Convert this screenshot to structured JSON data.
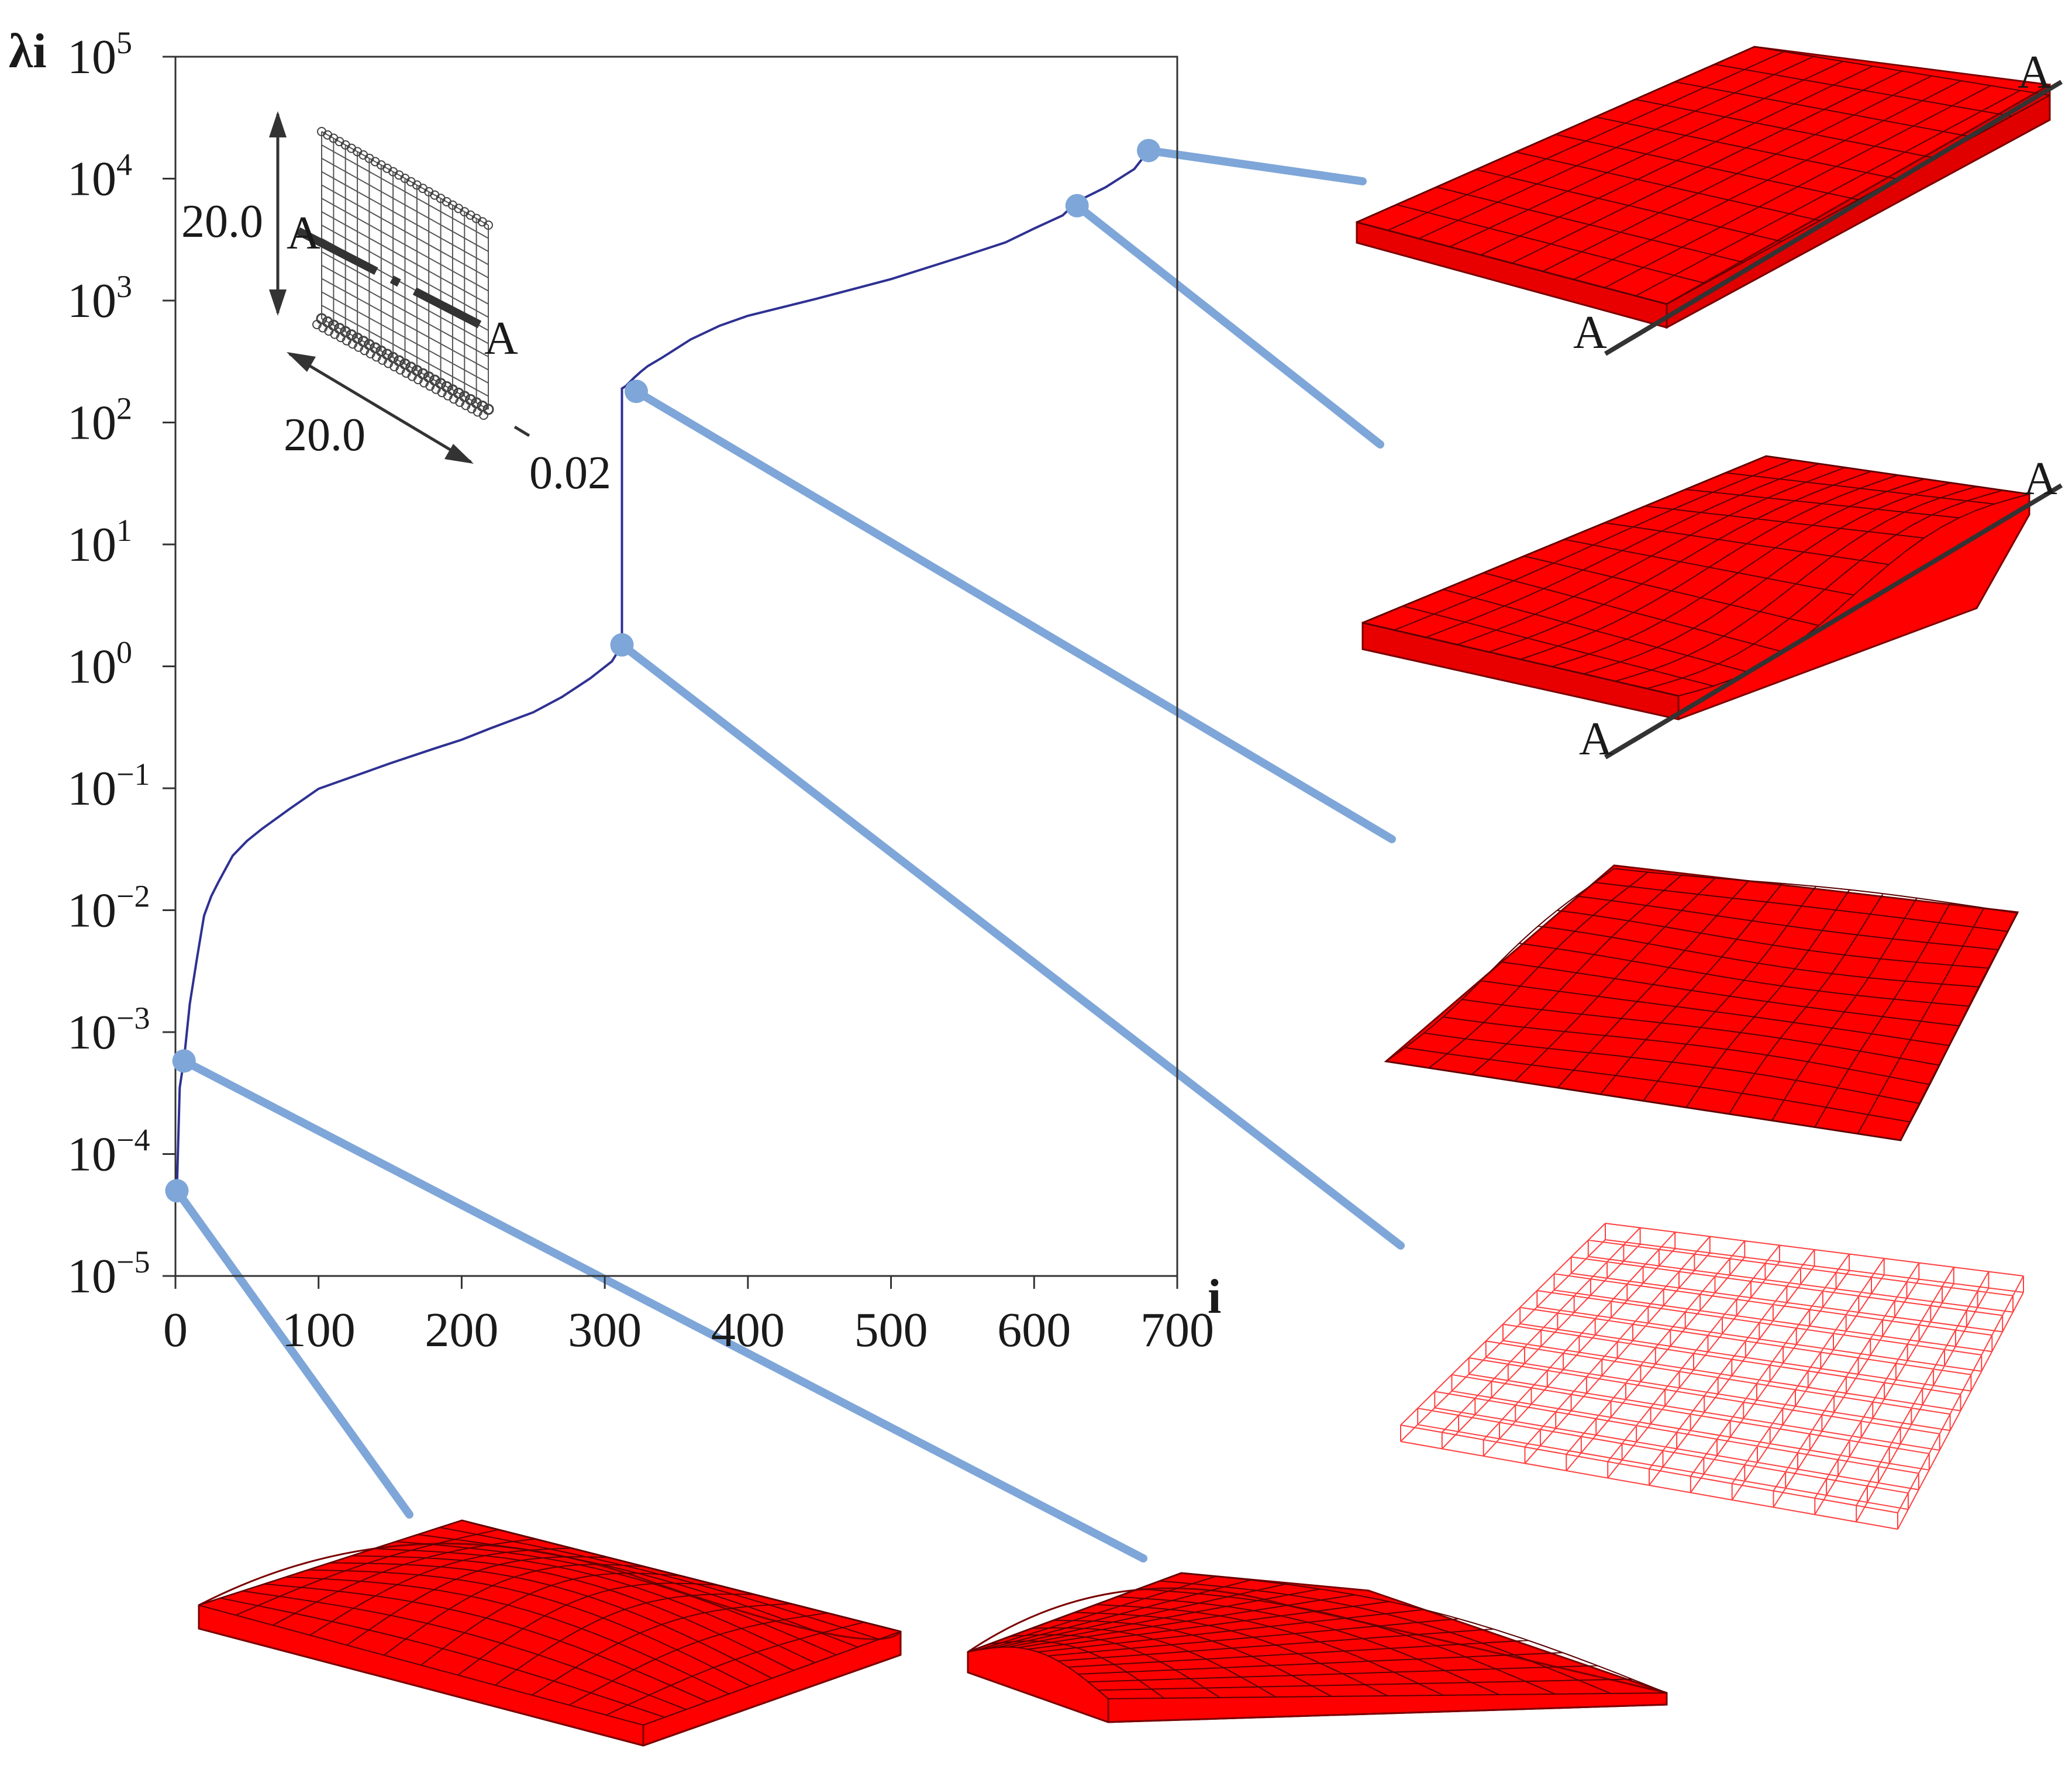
{
  "chart_data": {
    "type": "line",
    "title": "",
    "xlabel": "i",
    "ylabel": "λi",
    "xlim": [
      0,
      700
    ],
    "ylim": [
      1e-05,
      100000.0
    ],
    "yscale": "log",
    "grid": false,
    "xticks": [
      "0",
      "100",
      "200",
      "300",
      "400",
      "500",
      "600",
      "700"
    ],
    "ytick_mantissa": "10",
    "yticks_exp": [
      "5",
      "4",
      "3",
      "2",
      "1",
      "0",
      "−1",
      "−2",
      "−3",
      "−4",
      "−5"
    ],
    "series": [
      {
        "color": "#2e3192",
        "x": [
          1,
          3,
          6,
          10,
          15,
          20,
          25,
          30,
          40,
          50,
          60,
          80,
          100,
          120,
          150,
          180,
          200,
          220,
          250,
          270,
          290,
          305,
          312,
          312,
          315,
          320,
          325,
          330,
          340,
          360,
          380,
          400,
          450,
          500,
          550,
          580,
          600,
          620,
          630,
          650,
          670,
          680
        ],
        "y": [
          5e-05,
          0.00035,
          0.0006,
          0.0017,
          0.004,
          0.009,
          0.013,
          0.017,
          0.028,
          0.037,
          0.046,
          0.068,
          0.099,
          0.12,
          0.16,
          0.21,
          0.25,
          0.31,
          0.42,
          0.56,
          0.8,
          1.1,
          1.5,
          190,
          200,
          230,
          260,
          290,
          340,
          480,
          620,
          750,
          1050,
          1500,
          2300,
          3000,
          3900,
          5000,
          6500,
          8500,
          12000,
          17000
        ]
      }
    ],
    "highlight_points": [
      {
        "x": 1,
        "y": 5e-05
      },
      {
        "x": 6,
        "y": 0.00058
      },
      {
        "x": 312,
        "y": 1.5
      },
      {
        "x": 322,
        "y": 180
      },
      {
        "x": 630,
        "y": 6000
      },
      {
        "x": 680,
        "y": 17000
      }
    ],
    "inset": {
      "height_label": "20.0",
      "width_label": "20.0",
      "thickness_label": "0.02",
      "section_label": "A"
    },
    "section_labels": [
      "A",
      "A",
      "A",
      "A"
    ]
  },
  "colors": {
    "curve": "#2e3192",
    "callout": "#7ea6d8",
    "mode_fill": "#ff0000",
    "mode_edge": "#7a0000",
    "section_line": "#333333"
  }
}
